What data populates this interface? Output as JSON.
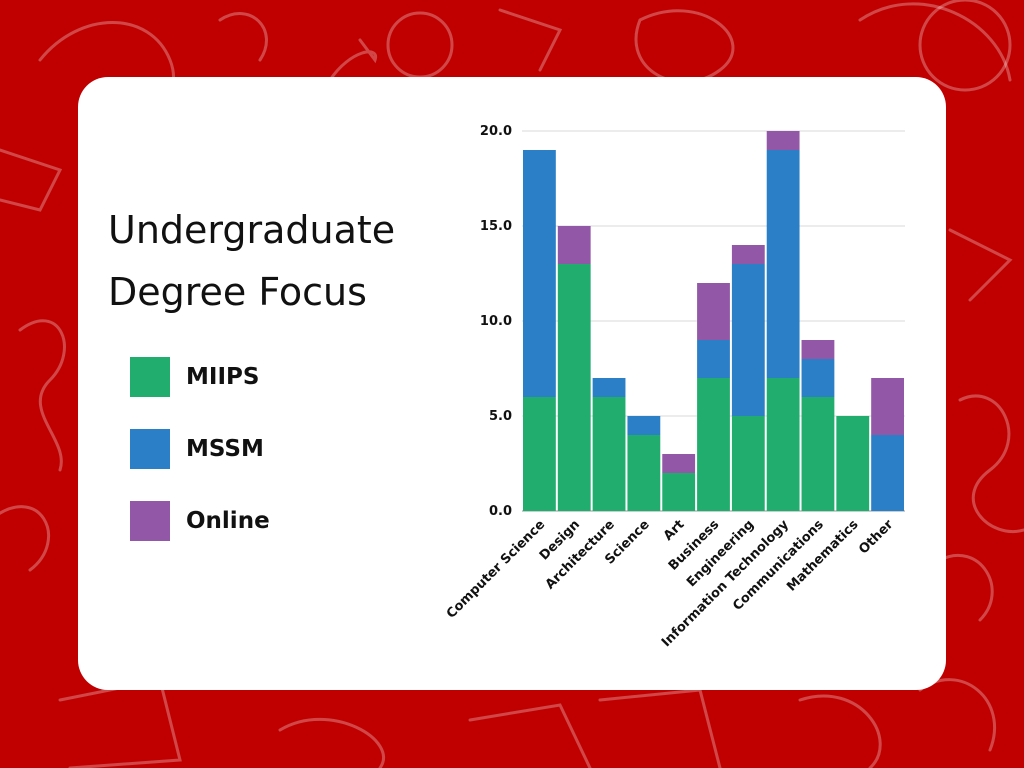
{
  "title_line1": "Undergraduate",
  "title_line2": "Degree Focus",
  "colors": {
    "background": "#c00000",
    "MIIPS": "#21ad6e",
    "MSSM": "#2a7fc7",
    "Online": "#9357a7"
  },
  "chart_data": {
    "type": "bar",
    "stacked": true,
    "categories": [
      "Computer Science",
      "Design",
      "Architecture",
      "Science",
      "Art",
      "Business",
      "Engineering",
      "Information Technology",
      "Communications",
      "Mathematics",
      "Other"
    ],
    "series": [
      {
        "name": "MIIPS",
        "color": "#21ad6e",
        "values": [
          6,
          13,
          6,
          4,
          2,
          7,
          5,
          7,
          6,
          5,
          0
        ]
      },
      {
        "name": "MSSM",
        "color": "#2a7fc7",
        "values": [
          13,
          0,
          1,
          1,
          0,
          2,
          8,
          12,
          2,
          0,
          4
        ]
      },
      {
        "name": "Online",
        "color": "#9357a7",
        "values": [
          0,
          2,
          0,
          0,
          1,
          3,
          1,
          1,
          1,
          0,
          3
        ]
      }
    ],
    "yticks": [
      "0.0",
      "5.0",
      "10.0",
      "15.0",
      "20.0"
    ],
    "ylim": [
      0,
      20
    ],
    "grid": true,
    "legend": "left"
  }
}
